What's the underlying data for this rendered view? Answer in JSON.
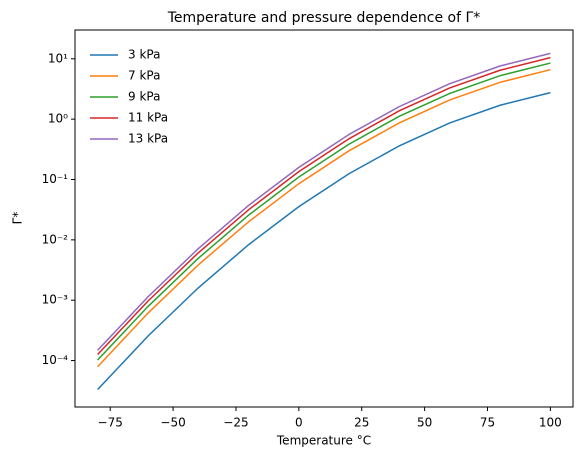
{
  "chart_data": {
    "type": "line",
    "title": "Temperature and pressure dependence of Γ*",
    "x_label": "Temperature °C",
    "y_label": "Γ*",
    "x": [
      -80,
      -60,
      -40,
      -20,
      0,
      20,
      40,
      60,
      80,
      100
    ],
    "series": [
      {
        "name": "3 kPa",
        "color": "#1f77b4",
        "values": [
          3.31e-05,
          0.000254,
          0.0016,
          0.0083,
          0.0355,
          0.125,
          0.362,
          0.865,
          1.7,
          2.75
        ]
      },
      {
        "name": "7 kPa",
        "color": "#ff7f0e",
        "values": [
          7.9e-05,
          0.00061,
          0.00384,
          0.0199,
          0.0852,
          0.3,
          0.869,
          2.08,
          4.08,
          6.6
        ]
      },
      {
        "name": "9 kPa",
        "color": "#2ca02c",
        "values": [
          0.000102,
          0.000785,
          0.00494,
          0.0256,
          0.11,
          0.386,
          1.12,
          2.67,
          5.25,
          8.5
        ]
      },
      {
        "name": "11 kPa",
        "color": "#d62728",
        "values": [
          0.000126,
          0.000965,
          0.00608,
          0.0315,
          0.135,
          0.475,
          1.38,
          3.29,
          6.46,
          10.45
        ]
      },
      {
        "name": "13 kPa",
        "color": "#9467bd",
        "values": [
          0.000148,
          0.001135,
          0.00715,
          0.0371,
          0.159,
          0.559,
          1.62,
          3.87,
          7.6,
          12.3
        ]
      }
    ],
    "xlim": [
      -89,
      109
    ],
    "xticks": [
      {
        "value": -75,
        "label": "−75"
      },
      {
        "value": -50,
        "label": "−50"
      },
      {
        "value": -25,
        "label": "−25"
      },
      0,
      25,
      50,
      75,
      100
    ],
    "ylim": [
      1.7e-05,
      30
    ],
    "log_y": true,
    "yticks": [
      {
        "value": 0.0001,
        "label": "10⁻⁴"
      },
      {
        "value": 0.001,
        "label": "10⁻³"
      },
      {
        "value": 0.01,
        "label": "10⁻²"
      },
      {
        "value": 0.1,
        "label": "10⁻¹"
      },
      {
        "value": 1,
        "label": "10⁰"
      },
      {
        "value": 10,
        "label": "10¹"
      }
    ],
    "legend": "upper left",
    "grid": false
  }
}
